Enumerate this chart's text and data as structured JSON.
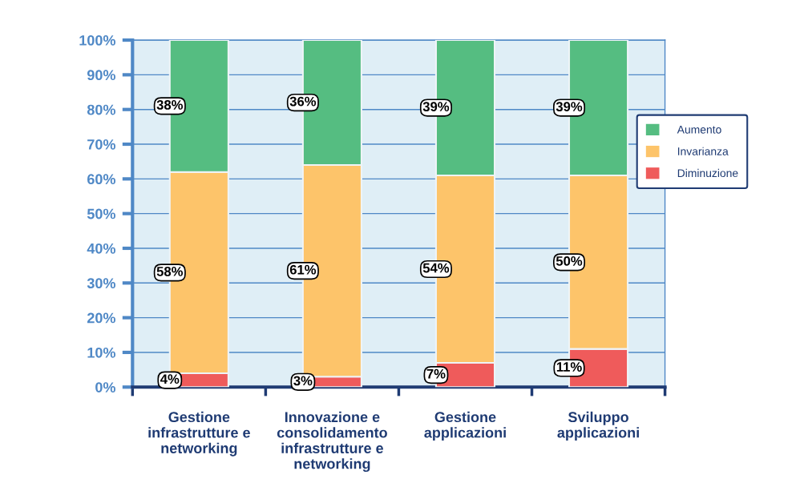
{
  "chart_data": {
    "type": "bar",
    "stacked": true,
    "categories": [
      "Gestione\ninfrastrutture e\nnetworking",
      "Innovazione e\nconsolidamento\ninfrastrutture e\nnetworking",
      "Gestione\napplicazioni",
      "Sviluppo\napplicazioni"
    ],
    "series": [
      {
        "name": "Diminuzione",
        "color": "#ef5b5b",
        "values": [
          4,
          3,
          7,
          11
        ],
        "value_labels": [
          "4%",
          "3%",
          "7%",
          "11%"
        ]
      },
      {
        "name": "Invarianza",
        "color": "#fdc46a",
        "values": [
          58,
          61,
          54,
          50
        ],
        "value_labels": [
          "58%",
          "61%",
          "54%",
          "50%"
        ]
      },
      {
        "name": "Aumento",
        "color": "#55bd81",
        "values": [
          38,
          36,
          39,
          39
        ],
        "value_labels": [
          "38%",
          "36%",
          "39%",
          "39%"
        ]
      }
    ],
    "ylim": [
      0,
      100
    ],
    "yticks": [
      {
        "value": 0,
        "label": "0%"
      },
      {
        "value": 10,
        "label": "10%"
      },
      {
        "value": 20,
        "label": "20%"
      },
      {
        "value": 30,
        "label": "30%"
      },
      {
        "value": 40,
        "label": "40%"
      },
      {
        "value": 50,
        "label": "50%"
      },
      {
        "value": 60,
        "label": "60%"
      },
      {
        "value": 70,
        "label": "70%"
      },
      {
        "value": 80,
        "label": "80%"
      },
      {
        "value": 90,
        "label": "90%"
      },
      {
        "value": 100,
        "label": "100%"
      }
    ],
    "grid": "y",
    "legend": "right"
  }
}
